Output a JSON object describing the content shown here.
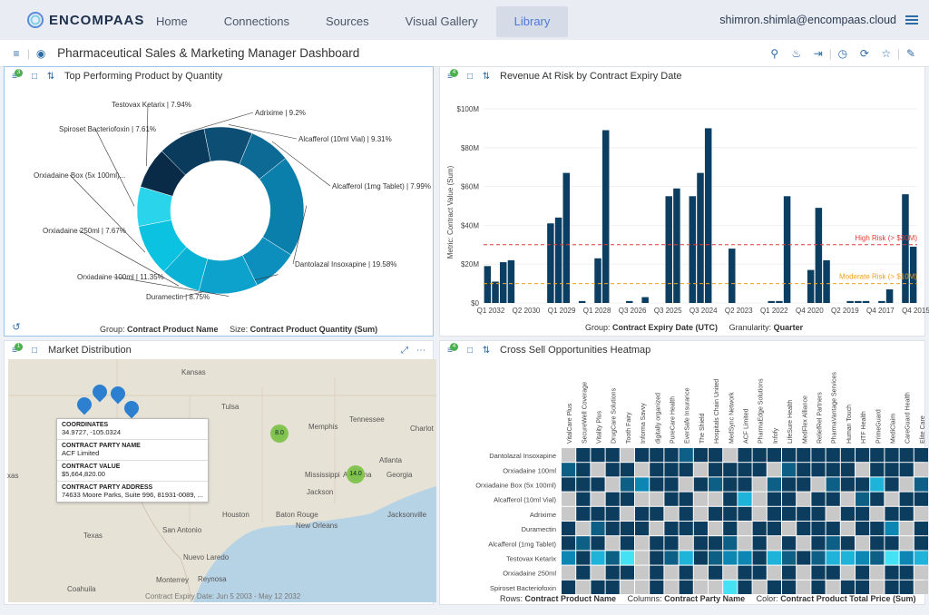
{
  "brand": {
    "name": "ENCOMPAAS"
  },
  "nav": {
    "items": [
      "Home",
      "Connections",
      "Sources",
      "Visual Gallery",
      "Library"
    ],
    "active": "Library",
    "user": "shimron.shimla@encompaas.cloud"
  },
  "dashboard": {
    "title": "Pharmaceutical Sales & Marketing Manager Dashboard"
  },
  "panels": {
    "donut": {
      "title": "Top Performing Product by Quantity",
      "badge": "3",
      "footer_group_k": "Group:",
      "footer_group_v": "Contract Product Name",
      "footer_size_k": "Size:",
      "footer_size_v": "Contract Product Quantity (Sum)"
    },
    "revenue": {
      "title": "Revenue At Risk by Contract Expiry Date",
      "badge": "4",
      "ylabel_k": "Metric:",
      "ylabel_v": "Contract Value (Sum)",
      "footer_group_k": "Group:",
      "footer_group_v": "Contract Expiry Date (UTC)",
      "footer_gran_k": "Granularity:",
      "footer_gran_v": "Quarter",
      "high_label": "High Risk (> $30M)",
      "mod_label": "Moderate Risk (> $10M)"
    },
    "map": {
      "title": "Market Distribution",
      "badge": "1",
      "footer": "Contract Expiry Date: Jun 5 2003 - May 12 2032"
    },
    "heatmap": {
      "title": "Cross Sell Opportunities Heatmap",
      "badge": "4",
      "footer_rows_k": "Rows:",
      "footer_rows_v": "Contract Product Name",
      "footer_cols_k": "Columns:",
      "footer_cols_v": "Contract Party Name",
      "footer_color_k": "Color:",
      "footer_color_v": "Contract Product Total Price (Sum)"
    }
  },
  "tooltip": {
    "rows": [
      {
        "k": "COORDINATES",
        "v": "34.9727, -105.0324"
      },
      {
        "k": "CONTRACT PARTY NAME",
        "v": "ACF Limited"
      },
      {
        "k": "CONTRACT VALUE",
        "v": "$5,664,820.00"
      },
      {
        "k": "CONTRACT PARTY ADDRESS",
        "v": "74633 Moore Parks, Suite 996, 81931-0089, ..."
      }
    ]
  },
  "map_labels": [
    {
      "t": "Kansas",
      "x": 200,
      "y": 406
    },
    {
      "t": "Tulsa",
      "x": 244,
      "y": 444
    },
    {
      "t": "Memphis",
      "x": 340,
      "y": 466
    },
    {
      "t": "Tennessee",
      "x": 385,
      "y": 458
    },
    {
      "t": "Charlot",
      "x": 452,
      "y": 468
    },
    {
      "t": "Atlanta",
      "x": 418,
      "y": 503
    },
    {
      "t": "Mississippi",
      "x": 336,
      "y": 519
    },
    {
      "t": "Alabama",
      "x": 378,
      "y": 519
    },
    {
      "t": "Georgia",
      "x": 426,
      "y": 519
    },
    {
      "t": "Jackson",
      "x": 338,
      "y": 538
    },
    {
      "t": "Houston",
      "x": 245,
      "y": 563
    },
    {
      "t": "Baton Rouge",
      "x": 304,
      "y": 563
    },
    {
      "t": "New Orleans",
      "x": 326,
      "y": 575
    },
    {
      "t": "Jacksonville",
      "x": 427,
      "y": 563
    },
    {
      "t": "San Antonio",
      "x": 179,
      "y": 580
    },
    {
      "t": "Texas",
      "x": 92,
      "y": 586
    },
    {
      "t": "Nuevo Laredo",
      "x": 202,
      "y": 610
    },
    {
      "t": "Monterrey",
      "x": 172,
      "y": 635
    },
    {
      "t": "Reynosa",
      "x": 218,
      "y": 634
    },
    {
      "t": "xas",
      "x": 8,
      "y": 520
    },
    {
      "t": "Coahuila",
      "x": 74,
      "y": 645
    }
  ],
  "clusters": [
    {
      "label": "8.0"
    },
    {
      "label": "14.0"
    }
  ],
  "chart_data": [
    {
      "type": "pie",
      "title": "Top Performing Product by Quantity",
      "slices": [
        {
          "label": "Adrixime | 9.2%",
          "value": 9.2,
          "color": "#0a3a5c"
        },
        {
          "label": "Alcafferol (10ml Vial) | 9.31%",
          "value": 9.31,
          "color": "#0d4e75"
        },
        {
          "label": "Alcafferol (1mg Tablet) | 7.99%",
          "value": 7.99,
          "color": "#0c6a94"
        },
        {
          "label": "Dantolazal Insoxapine | 19.58%",
          "value": 19.58,
          "color": "#0a7fac"
        },
        {
          "label": "Duramectin | 8.75%",
          "value": 8.75,
          "color": "#0c8fbd"
        },
        {
          "label": "Orxiadaine 100ml | 11.35%",
          "value": 11.35,
          "color": "#0ca2cc"
        },
        {
          "label": "Orxiadaine 250ml | 7.67%",
          "value": 7.67,
          "color": "#0ab2d6"
        },
        {
          "label": "Orxiadaine Box (5x 100ml)...",
          "value": 10,
          "color": "#0bc2e0"
        },
        {
          "label": "Spiroset Bacteriofoxin | 7.61%",
          "value": 7.61,
          "color": "#2ad4ea"
        },
        {
          "label": "Testovax Ketarix | 7.94%",
          "value": 7.94,
          "color": "#0a2b48"
        }
      ]
    },
    {
      "type": "bar",
      "title": "Revenue At Risk by Contract Expiry Date",
      "ylim": [
        0,
        100
      ],
      "yticks": [
        "$0",
        "$20M",
        "$40M",
        "$60M",
        "$80M",
        "$100M"
      ],
      "values": [
        19,
        11,
        21,
        22,
        0,
        0,
        0,
        0,
        41,
        44,
        67,
        0,
        1,
        0,
        23,
        89,
        0,
        0,
        1,
        0,
        3,
        0,
        0,
        55,
        59,
        0,
        55,
        67,
        90,
        0,
        0,
        28,
        0,
        0,
        0,
        0,
        1,
        1,
        55,
        0,
        0,
        17,
        49,
        22,
        0,
        0,
        1,
        1,
        1,
        0,
        1,
        7,
        0,
        56,
        29
      ],
      "xlabels": [
        "Q1 2032",
        "Q2 2030",
        "Q1 2029",
        "Q1 2028",
        "Q3 2026",
        "Q3 2025",
        "Q3 2024",
        "Q2 2023",
        "Q1 2022",
        "Q4 2020",
        "Q2 2019",
        "Q4 2017",
        "Q4 2015"
      ],
      "thresholds": [
        {
          "value": 30,
          "color": "#e53935"
        },
        {
          "value": 10,
          "color": "#f0a020"
        }
      ]
    },
    {
      "type": "heatmap",
      "title": "Cross Sell Opportunities Heatmap",
      "columns": [
        "VitalCare Plus",
        "SecureWell Coverage",
        "Vitality Plus",
        "DrugCare Solutions",
        "Tooth Fairy",
        "Informa Savvy",
        "digitally organized",
        "PureCare Health",
        "EverSafe Insurance",
        "The Shield",
        "Hospitals Chain United",
        "MedSync Network",
        "ACF Limited",
        "PharmaEdge Solutions",
        "Infofy",
        "LifeSure Health",
        "MedFlex Alliance",
        "ReliefRel Partners",
        "PharmaVantage Services",
        "Human Touch",
        "HTF Health",
        "PrimeGuard",
        "MediClaim",
        "CareGuard Health",
        "Elite Care"
      ],
      "rows": [
        "Dantolazal Insoxapine",
        "Orxiadaine 100ml",
        "Orxiadaine Box (5x 100ml)",
        "Alcafferol (10ml Vial)",
        "Adrixime",
        "Duramectin",
        "Alcafferol (1mg Tablet)",
        "Testovax Ketarix",
        "Orxiadaine 250ml",
        "Spiroset Bacteriofoxin"
      ],
      "palette": [
        "#c8c8c8",
        "#0d3d5e",
        "#0d5f86",
        "#0e86b4",
        "#1fb3da",
        "#45e2f5"
      ],
      "cells": [
        [
          0,
          1,
          1,
          1,
          0,
          1,
          1,
          1,
          2,
          1,
          1,
          0,
          1,
          1,
          1,
          1,
          1,
          1,
          1,
          1,
          1,
          1,
          1,
          1,
          1
        ],
        [
          2,
          1,
          0,
          1,
          1,
          0,
          1,
          1,
          1,
          0,
          1,
          1,
          1,
          1,
          0,
          2,
          1,
          1,
          1,
          1,
          0,
          1,
          1,
          1,
          0
        ],
        [
          1,
          1,
          1,
          0,
          2,
          3,
          1,
          1,
          0,
          1,
          2,
          1,
          1,
          0,
          2,
          1,
          1,
          0,
          2,
          1,
          1,
          4,
          1,
          0,
          2
        ],
        [
          0,
          1,
          0,
          1,
          1,
          0,
          0,
          1,
          1,
          0,
          0,
          1,
          4,
          0,
          1,
          1,
          0,
          1,
          1,
          0,
          2,
          1,
          0,
          1,
          1
        ],
        [
          0,
          1,
          1,
          1,
          0,
          1,
          1,
          0,
          1,
          0,
          1,
          1,
          1,
          0,
          1,
          1,
          1,
          1,
          0,
          1,
          1,
          0,
          1,
          1,
          0
        ],
        [
          1,
          0,
          2,
          1,
          1,
          1,
          0,
          1,
          1,
          1,
          0,
          1,
          0,
          1,
          1,
          0,
          1,
          1,
          1,
          0,
          1,
          1,
          3,
          0,
          1
        ],
        [
          1,
          2,
          1,
          0,
          1,
          0,
          1,
          1,
          0,
          1,
          1,
          2,
          0,
          1,
          0,
          1,
          0,
          1,
          2,
          1,
          0,
          1,
          1,
          0,
          1
        ],
        [
          3,
          1,
          4,
          2,
          5,
          0,
          1,
          2,
          4,
          1,
          2,
          3,
          3,
          1,
          4,
          2,
          1,
          2,
          4,
          4,
          3,
          2,
          5,
          3,
          4
        ],
        [
          0,
          1,
          0,
          1,
          1,
          0,
          1,
          0,
          1,
          0,
          1,
          0,
          1,
          1,
          0,
          1,
          0,
          1,
          1,
          0,
          1,
          0,
          1,
          1,
          0
        ],
        [
          1,
          0,
          1,
          1,
          0,
          0,
          1,
          0,
          1,
          0,
          0,
          5,
          1,
          0,
          1,
          1,
          0,
          1,
          0,
          1,
          1,
          0,
          1,
          1,
          0
        ]
      ]
    }
  ]
}
